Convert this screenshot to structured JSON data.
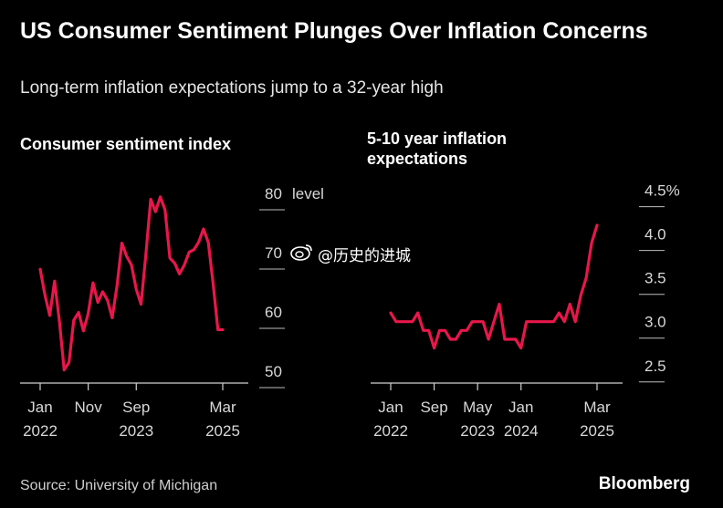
{
  "header": {
    "title": "US Consumer Sentiment Plunges Over Inflation Concerns",
    "subtitle": "Long-term inflation expectations jump to a 32-year high"
  },
  "watermark": {
    "text": "@历史的进城",
    "icon": "weibo-icon"
  },
  "footer": {
    "source": "Source: University of Michigan",
    "brand": "Bloomberg"
  },
  "colors": {
    "line": "#e8174a",
    "background": "#000000",
    "grid": "#d0d0d0"
  },
  "chart_data": [
    {
      "type": "line",
      "title": "Consumer sentiment index",
      "yunit": "level",
      "ylim": [
        48,
        82
      ],
      "yticks": [
        50,
        60,
        70,
        80
      ],
      "ytick_labels": [
        "50",
        "60",
        "70",
        "80"
      ],
      "xlim": [
        0,
        38
      ],
      "xticks": [
        {
          "x": 0,
          "label": [
            "Jan",
            "2022"
          ]
        },
        {
          "x": 10,
          "label": [
            "Nov",
            ""
          ]
        },
        {
          "x": 20,
          "label": [
            "Sep",
            "2023"
          ]
        },
        {
          "x": 38,
          "label": [
            "Mar",
            "2025"
          ]
        }
      ],
      "series": [
        {
          "x": [
            0,
            1,
            2,
            3,
            4,
            5,
            6,
            7,
            8,
            9,
            10,
            11,
            12,
            13,
            14,
            15,
            16,
            17,
            18,
            19,
            20,
            21,
            22,
            23,
            24,
            25,
            26,
            27,
            28,
            29,
            30,
            31,
            32,
            33,
            34,
            35,
            36,
            37,
            38
          ],
          "values": [
            67.2,
            62.8,
            59.4,
            65.2,
            58.4,
            50.2,
            51.5,
            58.6,
            59.9,
            56.8,
            59.7,
            64.9,
            61.6,
            63.4,
            62.0,
            59.0,
            64.4,
            71.6,
            69.4,
            67.9,
            63.8,
            61.3,
            69.7,
            79.0,
            76.9,
            79.4,
            77.2,
            69.1,
            68.2,
            66.4,
            67.9,
            70.1,
            70.5,
            71.8,
            74.0,
            71.7,
            64.7,
            57.0,
            57.0
          ]
        }
      ],
      "grid": false
    },
    {
      "type": "line",
      "title": "5-10 year inflation expectations",
      "yunit": "%",
      "ylim": [
        2.3,
        4.6
      ],
      "yticks": [
        2.5,
        3.0,
        3.5,
        4.0,
        4.5
      ],
      "ytick_labels": [
        "2.5",
        "3.0",
        "3.5",
        "4.0",
        "4.5%"
      ],
      "xlim": [
        0,
        38
      ],
      "xticks": [
        {
          "x": 0,
          "label": [
            "Jan",
            "2022"
          ]
        },
        {
          "x": 8,
          "label": [
            "Sep",
            ""
          ]
        },
        {
          "x": 16,
          "label": [
            "May",
            "2023"
          ]
        },
        {
          "x": 24,
          "label": [
            "Jan",
            "2024"
          ]
        },
        {
          "x": 38,
          "label": [
            "Mar",
            "2025"
          ]
        }
      ],
      "series": [
        {
          "x": [
            0,
            1,
            2,
            3,
            4,
            5,
            6,
            7,
            8,
            9,
            10,
            11,
            12,
            13,
            14,
            15,
            16,
            17,
            18,
            19,
            20,
            21,
            22,
            23,
            24,
            25,
            26,
            27,
            28,
            29,
            30,
            31,
            32,
            33,
            34,
            35,
            36,
            37,
            38
          ],
          "values": [
            3.1,
            3.0,
            3.0,
            3.0,
            3.0,
            3.1,
            2.9,
            2.9,
            2.7,
            2.9,
            2.9,
            2.8,
            2.8,
            2.9,
            2.9,
            3.0,
            3.0,
            3.0,
            2.8,
            3.0,
            3.2,
            2.8,
            2.8,
            2.8,
            2.7,
            3.0,
            3.0,
            3.0,
            3.0,
            3.0,
            3.0,
            3.1,
            3.0,
            3.2,
            3.0,
            3.3,
            3.5,
            3.9,
            4.1
          ]
        }
      ],
      "grid": false
    }
  ]
}
